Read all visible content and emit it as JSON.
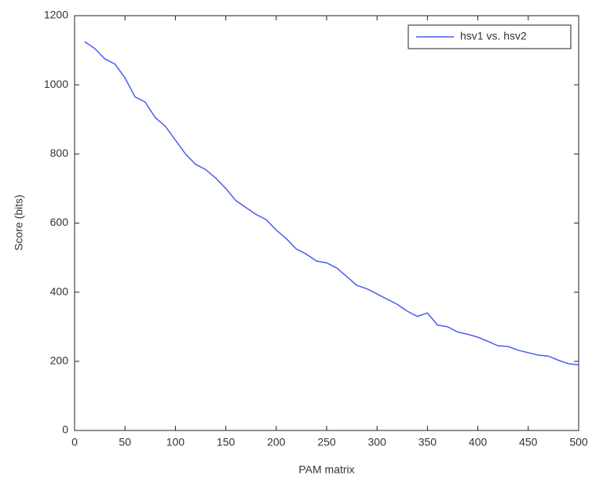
{
  "chart_data": {
    "type": "line",
    "xlabel": "PAM matrix",
    "ylabel": "Score (bits)",
    "x": [
      10,
      20,
      30,
      40,
      50,
      60,
      70,
      80,
      90,
      100,
      110,
      120,
      130,
      140,
      150,
      160,
      170,
      180,
      190,
      200,
      210,
      220,
      230,
      240,
      250,
      260,
      270,
      280,
      290,
      300,
      310,
      320,
      330,
      340,
      350,
      360,
      370,
      380,
      390,
      400,
      410,
      420,
      430,
      440,
      450,
      460,
      470,
      480,
      490,
      500
    ],
    "series": [
      {
        "name": "hsv1 vs. hsv2",
        "color": "#4b5cf0",
        "values": [
          1125,
          1105,
          1075,
          1060,
          1020,
          965,
          950,
          905,
          880,
          840,
          800,
          770,
          755,
          730,
          700,
          665,
          645,
          625,
          610,
          580,
          555,
          525,
          510,
          490,
          485,
          470,
          445,
          420,
          410,
          395,
          380,
          365,
          345,
          330,
          340,
          305,
          300,
          285,
          278,
          270,
          258,
          245,
          243,
          232,
          225,
          218,
          215,
          203,
          193,
          190
        ]
      }
    ],
    "xlim": [
      0,
      500
    ],
    "xticks": [
      0,
      50,
      100,
      150,
      200,
      250,
      300,
      350,
      400,
      450,
      500
    ],
    "ylim": [
      0,
      1200
    ],
    "yticks": [
      0,
      200,
      400,
      600,
      800,
      1000,
      1200
    ],
    "legend": "northeast",
    "grid": false
  }
}
